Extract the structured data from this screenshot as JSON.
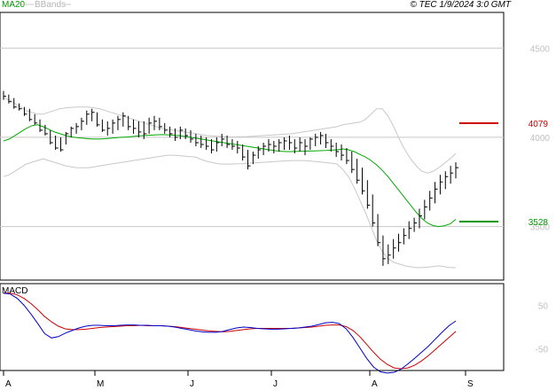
{
  "header": {
    "ma_legend": "MA20",
    "bands_legend": "BBands",
    "copyright": "© TEC 1/9/2024 3:0 GMT"
  },
  "chart_data": [
    {
      "type": "ohlc",
      "y_ticks": [
        "4500",
        "4000",
        "3500"
      ],
      "y_tick_values": [
        4500,
        4000,
        3500
      ],
      "ylim": [
        3200,
        4700
      ],
      "x_tick_labels": [
        "A",
        "M",
        "J",
        "J",
        "A",
        "S"
      ],
      "levels": [
        {
          "name": "4079",
          "value": 4079,
          "color": "#cc0000"
        },
        {
          "name": "3528",
          "value": 3528,
          "color": "#009900"
        }
      ],
      "series": [
        {
          "name": "MA20",
          "color": "#00aa00",
          "values": [
            3980,
            3990,
            4010,
            4030,
            4050,
            4065,
            4070,
            4060,
            4045,
            4030,
            4020,
            4010,
            4002,
            3998,
            3995,
            3992,
            3990,
            3990,
            3992,
            3995,
            3998,
            4000,
            4002,
            4005,
            4008,
            4010,
            4012,
            4014,
            4015,
            4014,
            4012,
            4010,
            4005,
            4000,
            3995,
            3990,
            3985,
            3980,
            3975,
            3970,
            3965,
            3960,
            3955,
            3950,
            3945,
            3940,
            3935,
            3930,
            3925,
            3922,
            3920,
            3920,
            3921,
            3922,
            3923,
            3924,
            3925,
            3926,
            3928,
            3930,
            3935,
            3930,
            3920,
            3905,
            3890,
            3870,
            3845,
            3815,
            3780,
            3740,
            3700,
            3660,
            3620,
            3580,
            3545,
            3520,
            3505,
            3500,
            3505,
            3515,
            3540
          ]
        },
        {
          "name": "BBands upper",
          "color": "#c8c8c8",
          "values": [
            4220,
            4210,
            4190,
            4170,
            4150,
            4140,
            4130,
            4130,
            4140,
            4150,
            4160,
            4165,
            4168,
            4170,
            4170,
            4170,
            4165,
            4160,
            4150,
            4140,
            4130,
            4120,
            4110,
            4100,
            4090,
            4080,
            4070,
            4060,
            4050,
            4045,
            4040,
            4035,
            4030,
            4025,
            4020,
            4015,
            4010,
            4008,
            4006,
            4004,
            4002,
            4002,
            4003,
            4004,
            4006,
            4008,
            4010,
            4012,
            4014,
            4016,
            4018,
            4020,
            4025,
            4030,
            4035,
            4040,
            4045,
            4050,
            4055,
            4060,
            4070,
            4075,
            4080,
            4085,
            4100,
            4130,
            4160,
            4160,
            4120,
            4060,
            3990,
            3930,
            3880,
            3840,
            3810,
            3800,
            3810,
            3830,
            3855,
            3880,
            3910
          ]
        },
        {
          "name": "BBands lower",
          "color": "#c8c8c8",
          "values": [
            3780,
            3790,
            3810,
            3830,
            3850,
            3860,
            3870,
            3880,
            3870,
            3860,
            3850,
            3840,
            3835,
            3830,
            3830,
            3830,
            3835,
            3840,
            3845,
            3850,
            3855,
            3860,
            3865,
            3870,
            3875,
            3880,
            3885,
            3890,
            3895,
            3900,
            3900,
            3898,
            3895,
            3892,
            3890,
            3875,
            3865,
            3858,
            3852,
            3850,
            3850,
            3851,
            3852,
            3854,
            3856,
            3858,
            3860,
            3862,
            3864,
            3866,
            3868,
            3870,
            3870,
            3870,
            3868,
            3865,
            3862,
            3858,
            3855,
            3850,
            3820,
            3780,
            3720,
            3650,
            3580,
            3500,
            3420,
            3360,
            3320,
            3300,
            3290,
            3280,
            3275,
            3270,
            3270,
            3272,
            3276,
            3280,
            3275,
            3270,
            3270
          ]
        }
      ],
      "bars": [
        [
          4260,
          4210,
          4230
        ],
        [
          4240,
          4190,
          4200
        ],
        [
          4220,
          4160,
          4170
        ],
        [
          4190,
          4150,
          4160
        ],
        [
          4170,
          4120,
          4130
        ],
        [
          4160,
          4090,
          4100
        ],
        [
          4130,
          4070,
          4080
        ],
        [
          4100,
          4030,
          4040
        ],
        [
          4070,
          4010,
          4020
        ],
        [
          4040,
          3960,
          3970
        ],
        [
          4010,
          3930,
          3940
        ],
        [
          4000,
          3920,
          3930
        ],
        [
          4030,
          3960,
          4020
        ],
        [
          4060,
          4000,
          4050
        ],
        [
          4080,
          4020,
          4060
        ],
        [
          4110,
          4040,
          4090
        ],
        [
          4150,
          4070,
          4130
        ],
        [
          4160,
          4090,
          4140
        ],
        [
          4140,
          4060,
          4070
        ],
        [
          4100,
          4030,
          4040
        ],
        [
          4090,
          4010,
          4050
        ],
        [
          4100,
          4020,
          4080
        ],
        [
          4120,
          4040,
          4100
        ],
        [
          4140,
          4060,
          4120
        ],
        [
          4120,
          4040,
          4060
        ],
        [
          4100,
          4020,
          4050
        ],
        [
          4090,
          4000,
          4030
        ],
        [
          4090,
          3990,
          4020
        ],
        [
          4110,
          4020,
          4080
        ],
        [
          4120,
          4040,
          4090
        ],
        [
          4110,
          4040,
          4060
        ],
        [
          4080,
          4020,
          4040
        ],
        [
          4060,
          4000,
          4020
        ],
        [
          4050,
          3980,
          4000
        ],
        [
          4060,
          3990,
          4040
        ],
        [
          4050,
          3990,
          4010
        ],
        [
          4040,
          3970,
          3990
        ],
        [
          4020,
          3950,
          3970
        ],
        [
          4010,
          3940,
          3960
        ],
        [
          4000,
          3930,
          3950
        ],
        [
          3990,
          3910,
          3930
        ],
        [
          4000,
          3920,
          3970
        ],
        [
          4020,
          3950,
          3990
        ],
        [
          4010,
          3940,
          3960
        ],
        [
          3990,
          3930,
          3950
        ],
        [
          3980,
          3910,
          3940
        ],
        [
          3960,
          3870,
          3890
        ],
        [
          3930,
          3820,
          3840
        ],
        [
          3920,
          3850,
          3900
        ],
        [
          3950,
          3880,
          3930
        ],
        [
          3970,
          3900,
          3950
        ],
        [
          3990,
          3920,
          3960
        ],
        [
          3980,
          3910,
          3950
        ],
        [
          3990,
          3920,
          3970
        ],
        [
          4000,
          3930,
          3980
        ],
        [
          4010,
          3930,
          3970
        ],
        [
          3990,
          3910,
          3940
        ],
        [
          4000,
          3920,
          3970
        ],
        [
          3990,
          3900,
          3950
        ],
        [
          4000,
          3930,
          3990
        ],
        [
          4020,
          3950,
          4000
        ],
        [
          4030,
          3960,
          4010
        ],
        [
          4020,
          3940,
          3970
        ],
        [
          3990,
          3920,
          3950
        ],
        [
          3970,
          3890,
          3920
        ],
        [
          3960,
          3870,
          3900
        ],
        [
          3940,
          3850,
          3870
        ],
        [
          3920,
          3800,
          3820
        ],
        [
          3880,
          3740,
          3760
        ],
        [
          3830,
          3680,
          3700
        ],
        [
          3760,
          3600,
          3620
        ],
        [
          3680,
          3500,
          3520
        ],
        [
          3570,
          3390,
          3410
        ],
        [
          3450,
          3280,
          3320
        ],
        [
          3400,
          3290,
          3340
        ],
        [
          3430,
          3320,
          3380
        ],
        [
          3460,
          3360,
          3410
        ],
        [
          3490,
          3400,
          3450
        ],
        [
          3530,
          3430,
          3490
        ],
        [
          3550,
          3470,
          3520
        ],
        [
          3600,
          3490,
          3560
        ],
        [
          3650,
          3540,
          3610
        ],
        [
          3700,
          3590,
          3660
        ],
        [
          3750,
          3630,
          3710
        ],
        [
          3790,
          3680,
          3750
        ],
        [
          3810,
          3710,
          3780
        ],
        [
          3840,
          3740,
          3800
        ],
        [
          3860,
          3770,
          3830
        ]
      ]
    },
    {
      "type": "line",
      "title": "MACD",
      "y_ticks": [
        "50",
        "-50"
      ],
      "y_tick_values": [
        50,
        -50
      ],
      "ylim": [
        -100,
        100
      ],
      "series": [
        {
          "name": "MACD",
          "color": "#0000cc",
          "values": [
            78,
            76,
            66,
            50,
            30,
            8,
            -15,
            -25,
            -22,
            -14,
            -8,
            -2,
            2,
            4,
            4,
            3,
            3,
            4,
            5,
            5,
            4,
            4,
            3,
            3,
            2,
            0,
            -3,
            -6,
            -9,
            -11,
            -12,
            -12,
            -10,
            -6,
            -2,
            0,
            -1,
            -3,
            -4,
            -5,
            -5,
            -4,
            -3,
            -2,
            0,
            2,
            6,
            10,
            11,
            8,
            -4,
            -24,
            -48,
            -72,
            -92,
            -103,
            -106,
            -104,
            -97,
            -85,
            -72,
            -58,
            -44,
            -28,
            -12,
            3,
            14
          ]
        },
        {
          "name": "Signal",
          "color": "#cc0000",
          "values": [
            78,
            78,
            74,
            66,
            54,
            40,
            24,
            12,
            2,
            -4,
            -6,
            -6,
            -5,
            -3,
            -1,
            0,
            1,
            2,
            3,
            3,
            4,
            3,
            3,
            3,
            2,
            1,
            -1,
            -3,
            -5,
            -7,
            -9,
            -10,
            -11,
            -10,
            -8,
            -6,
            -4,
            -3,
            -3,
            -3,
            -3,
            -3,
            -3,
            -2,
            -1,
            0,
            2,
            4,
            5,
            5,
            1,
            -8,
            -22,
            -40,
            -58,
            -74,
            -86,
            -94,
            -96,
            -94,
            -88,
            -78,
            -66,
            -52,
            -38,
            -24,
            -10
          ]
        }
      ]
    }
  ]
}
